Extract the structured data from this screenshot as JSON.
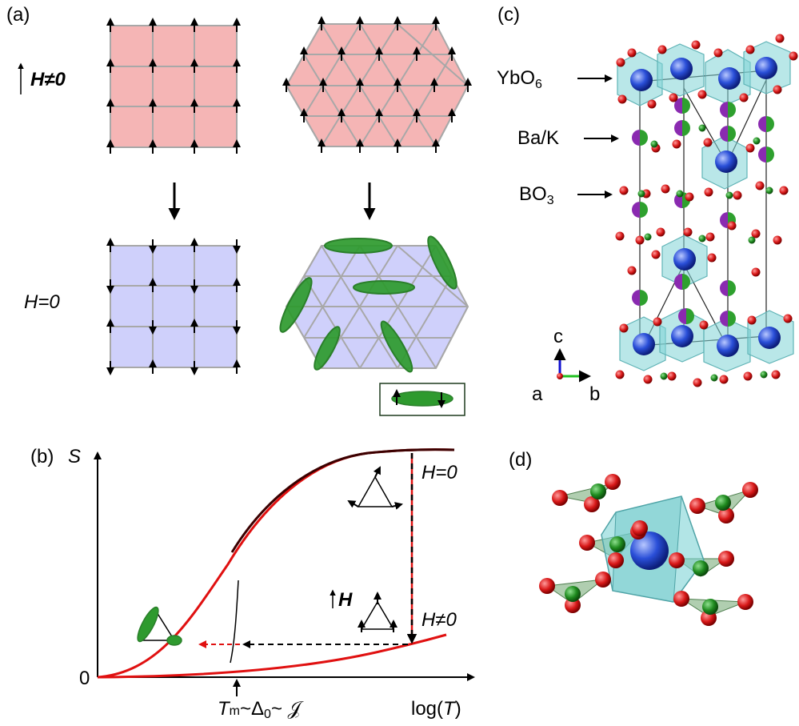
{
  "colors": {
    "polarized_fill": "#f5b5b5",
    "zero_field_fill": "#cfd0fb",
    "grid_line": "#a8a8a8",
    "spin": "#000000",
    "singlet": "#2e9a2e",
    "singlet_dark": "#2a7f2a",
    "curve_red": "#e01010",
    "curve_dark": "#3a0000",
    "oxygen": "#d81818",
    "boron": "#1e8a1e",
    "ytterbium": "#2a4fd8",
    "barium": "#8a2ab0",
    "octahedron": "#7fd3d6"
  },
  "panel_a": {
    "label": "(a)",
    "field_on": "H≠0",
    "field_off": "H=0"
  },
  "panel_b": {
    "label": "(b)",
    "y_axis": "S",
    "x_axis_pre": "log(",
    "x_axis_var": "T",
    "x_axis_post": ")",
    "zero": "0",
    "curve_top_label": "H=0",
    "curve_bottom_label": "H≠0",
    "field_label": "H",
    "scale_t": "T",
    "scale_sub": "m",
    "scale_rest": "~Δ",
    "scale_sub0": "0",
    "scale_end": "~ 𝒥"
  },
  "panel_c": {
    "label": "(c)",
    "site_yb_main": "YbO",
    "site_yb_sub": "6",
    "site_ba": "Ba/K",
    "site_bo_main": "BO",
    "site_bo_sub": "3",
    "axis_a": "a",
    "axis_b": "b",
    "axis_c": "c"
  },
  "panel_d": {
    "label": "(d)"
  }
}
